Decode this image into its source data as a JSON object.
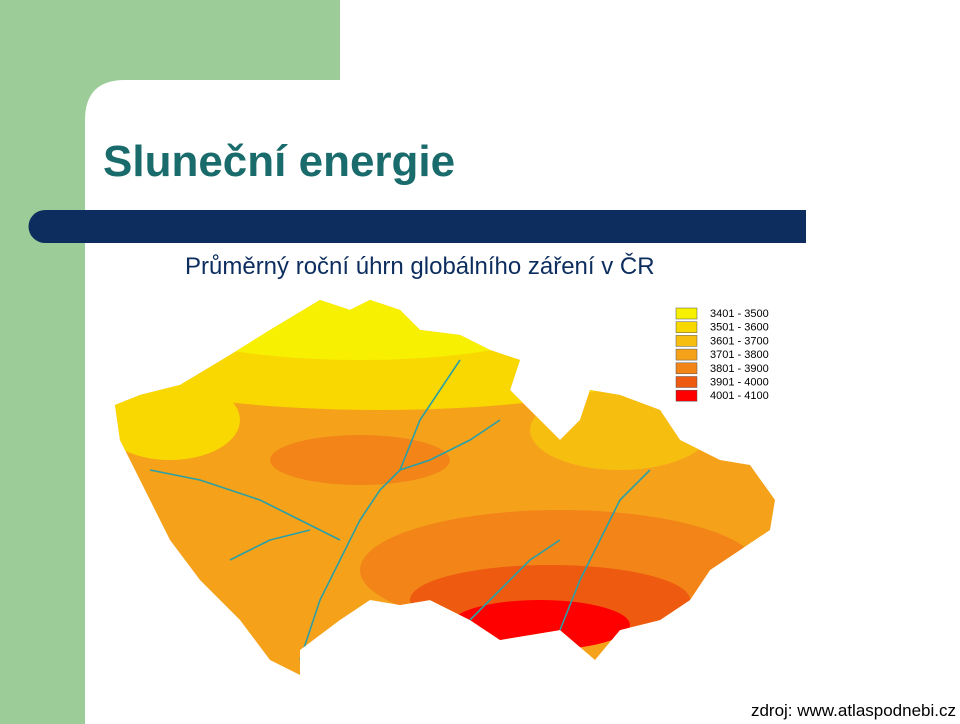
{
  "header": {
    "title": "Sluneční energie",
    "subtitle": "Průměrný roční úhrn globálního záření v ČR"
  },
  "legend": {
    "items": [
      {
        "label": "3401 - 3500",
        "color": "#f7f000"
      },
      {
        "label": "3501 - 3600",
        "color": "#f8d800"
      },
      {
        "label": "3601 - 3700",
        "color": "#f6bf10"
      },
      {
        "label": "3701 - 3800",
        "color": "#f5a21a"
      },
      {
        "label": "3801 - 3900",
        "color": "#f28418"
      },
      {
        "label": "3901 - 4000",
        "color": "#ee5a10"
      },
      {
        "label": "4001 - 4100",
        "color": "#ff0000"
      }
    ]
  },
  "source": "zdroj: www.atlaspodnebi.cz"
}
